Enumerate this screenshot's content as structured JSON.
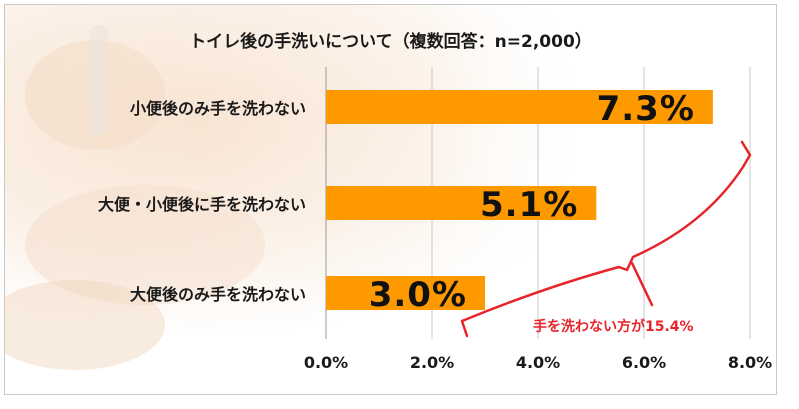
{
  "chart_data": {
    "type": "bar",
    "orientation": "horizontal",
    "title": "トイレ後の手洗いについて（複数回答：n=2,000）",
    "categories": [
      "小便後のみ手を洗わない",
      "大便・小便後に手を洗わない",
      "大便後のみ手を洗わない"
    ],
    "values": [
      7.3,
      5.1,
      3.0
    ],
    "value_labels": [
      "7.3%",
      "5.1%",
      "3.0%"
    ],
    "xlim": [
      0,
      8
    ],
    "x_ticks": [
      "0.0%",
      "2.0%",
      "4.0%",
      "6.0%",
      "8.0%"
    ],
    "grid": "vertical",
    "bar_color": "#ff9900",
    "annotation": {
      "text": "手を洗わない方が15.4%",
      "color": "#e8242b"
    }
  }
}
